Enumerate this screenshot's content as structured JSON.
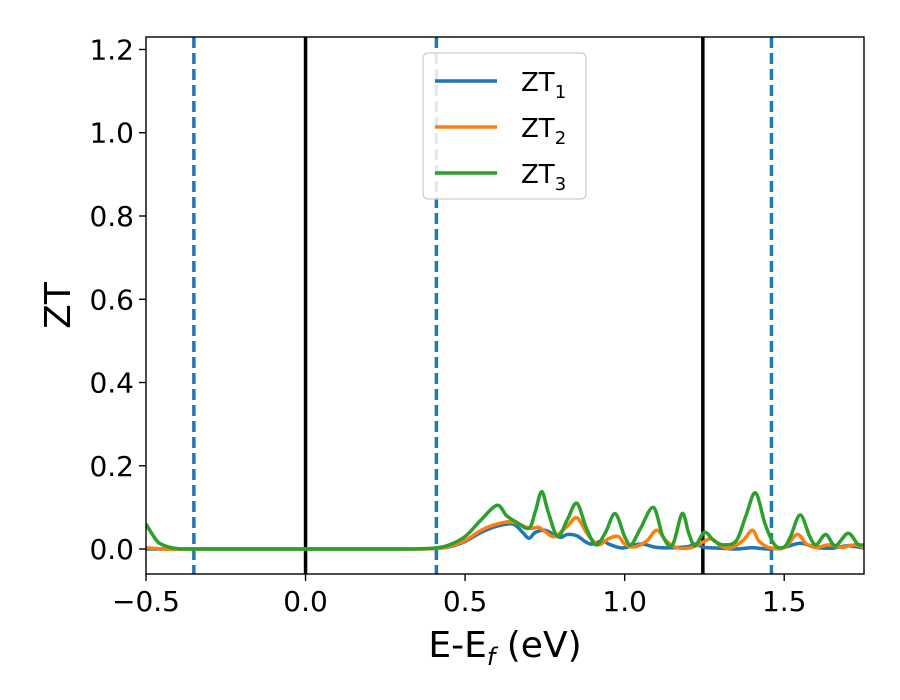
{
  "chart_data": {
    "type": "line",
    "xlabel": {
      "main": "E-E",
      "sub": "f",
      "rest": " (eV)"
    },
    "ylabel": "ZT",
    "xlim": [
      -0.5,
      1.75
    ],
    "ylim": [
      -0.06,
      1.23
    ],
    "xticks": [
      {
        "value": -0.5,
        "label": "−0.5"
      },
      {
        "value": 0.0,
        "label": "0.0"
      },
      {
        "value": 0.5,
        "label": "0.5"
      },
      {
        "value": 1.0,
        "label": "1.0"
      },
      {
        "value": 1.5,
        "label": "1.5"
      }
    ],
    "yticks": [
      {
        "value": 0.0,
        "label": "0.0"
      },
      {
        "value": 0.2,
        "label": "0.2"
      },
      {
        "value": 0.4,
        "label": "0.4"
      },
      {
        "value": 0.6,
        "label": "0.6"
      },
      {
        "value": 0.8,
        "label": "0.8"
      },
      {
        "value": 1.0,
        "label": "1.0"
      },
      {
        "value": 1.2,
        "label": "1.2"
      }
    ],
    "grid": false,
    "legend": {
      "position": "top-center"
    },
    "vlines_solid": [
      0.0,
      1.245
    ],
    "vlines_dashed": [
      -0.35,
      0.41,
      1.46
    ],
    "colors": {
      "solid_line": "#000000",
      "dashed_line": "#1f77b4"
    },
    "series": [
      {
        "name": "ZT",
        "subscript": "1",
        "color": "#1f77b4",
        "points": [
          [
            -0.5,
            0.0
          ],
          [
            -0.45,
            0.0
          ],
          [
            -0.4,
            0.0
          ],
          [
            -0.35,
            0.0
          ],
          [
            -0.3,
            0.0
          ],
          [
            0.0,
            0.0
          ],
          [
            0.3,
            0.0
          ],
          [
            0.4,
            0.001
          ],
          [
            0.45,
            0.005
          ],
          [
            0.5,
            0.018
          ],
          [
            0.55,
            0.04
          ],
          [
            0.6,
            0.055
          ],
          [
            0.65,
            0.06
          ],
          [
            0.68,
            0.04
          ],
          [
            0.7,
            0.026
          ],
          [
            0.72,
            0.04
          ],
          [
            0.75,
            0.045
          ],
          [
            0.78,
            0.034
          ],
          [
            0.8,
            0.028
          ],
          [
            0.82,
            0.035
          ],
          [
            0.85,
            0.032
          ],
          [
            0.88,
            0.016
          ],
          [
            0.9,
            0.012
          ],
          [
            0.93,
            0.02
          ],
          [
            0.95,
            0.012
          ],
          [
            0.98,
            0.004
          ],
          [
            1.0,
            0.003
          ],
          [
            1.05,
            0.012
          ],
          [
            1.1,
            0.004
          ],
          [
            1.15,
            0.003
          ],
          [
            1.2,
            0.006
          ],
          [
            1.22,
            0.012
          ],
          [
            1.25,
            0.004
          ],
          [
            1.3,
            0.002
          ],
          [
            1.35,
            0.0
          ],
          [
            1.4,
            0.003
          ],
          [
            1.45,
            0.0
          ],
          [
            1.5,
            0.004
          ],
          [
            1.55,
            0.014
          ],
          [
            1.6,
            0.004
          ],
          [
            1.65,
            0.002
          ],
          [
            1.7,
            0.008
          ],
          [
            1.75,
            0.002
          ]
        ]
      },
      {
        "name": "ZT",
        "subscript": "2",
        "color": "#ff7f0e",
        "points": [
          [
            -0.5,
            0.003
          ],
          [
            -0.45,
            0.0
          ],
          [
            -0.4,
            0.0
          ],
          [
            -0.35,
            0.0
          ],
          [
            0.0,
            0.0
          ],
          [
            0.3,
            0.0
          ],
          [
            0.4,
            0.001
          ],
          [
            0.45,
            0.006
          ],
          [
            0.5,
            0.02
          ],
          [
            0.55,
            0.045
          ],
          [
            0.6,
            0.06
          ],
          [
            0.65,
            0.065
          ],
          [
            0.7,
            0.05
          ],
          [
            0.73,
            0.052
          ],
          [
            0.75,
            0.042
          ],
          [
            0.78,
            0.03
          ],
          [
            0.82,
            0.055
          ],
          [
            0.85,
            0.075
          ],
          [
            0.88,
            0.04
          ],
          [
            0.9,
            0.02
          ],
          [
            0.92,
            0.01
          ],
          [
            0.95,
            0.025
          ],
          [
            0.98,
            0.03
          ],
          [
            1.0,
            0.012
          ],
          [
            1.03,
            0.005
          ],
          [
            1.07,
            0.02
          ],
          [
            1.1,
            0.045
          ],
          [
            1.13,
            0.02
          ],
          [
            1.16,
            0.004
          ],
          [
            1.2,
            0.002
          ],
          [
            1.23,
            0.01
          ],
          [
            1.27,
            0.025
          ],
          [
            1.3,
            0.008
          ],
          [
            1.33,
            0.002
          ],
          [
            1.37,
            0.02
          ],
          [
            1.4,
            0.045
          ],
          [
            1.42,
            0.02
          ],
          [
            1.45,
            0.004
          ],
          [
            1.5,
            0.003
          ],
          [
            1.54,
            0.035
          ],
          [
            1.57,
            0.012
          ],
          [
            1.6,
            0.004
          ],
          [
            1.64,
            0.01
          ],
          [
            1.68,
            0.004
          ],
          [
            1.72,
            0.01
          ],
          [
            1.75,
            0.003
          ]
        ]
      },
      {
        "name": "ZT",
        "subscript": "3",
        "color": "#2ca02c",
        "points": [
          [
            -0.5,
            0.06
          ],
          [
            -0.48,
            0.035
          ],
          [
            -0.46,
            0.015
          ],
          [
            -0.43,
            0.005
          ],
          [
            -0.4,
            0.001
          ],
          [
            -0.35,
            0.0
          ],
          [
            0.0,
            0.0
          ],
          [
            0.3,
            0.0
          ],
          [
            0.4,
            0.002
          ],
          [
            0.45,
            0.01
          ],
          [
            0.5,
            0.03
          ],
          [
            0.55,
            0.07
          ],
          [
            0.6,
            0.105
          ],
          [
            0.63,
            0.08
          ],
          [
            0.66,
            0.065
          ],
          [
            0.7,
            0.05
          ],
          [
            0.72,
            0.09
          ],
          [
            0.74,
            0.138
          ],
          [
            0.76,
            0.09
          ],
          [
            0.79,
            0.03
          ],
          [
            0.82,
            0.07
          ],
          [
            0.85,
            0.11
          ],
          [
            0.88,
            0.05
          ],
          [
            0.91,
            0.01
          ],
          [
            0.94,
            0.04
          ],
          [
            0.97,
            0.085
          ],
          [
            1.0,
            0.03
          ],
          [
            1.02,
            0.01
          ],
          [
            1.05,
            0.05
          ],
          [
            1.09,
            0.1
          ],
          [
            1.12,
            0.03
          ],
          [
            1.15,
            0.01
          ],
          [
            1.18,
            0.085
          ],
          [
            1.2,
            0.04
          ],
          [
            1.22,
            0.008
          ],
          [
            1.25,
            0.04
          ],
          [
            1.28,
            0.02
          ],
          [
            1.31,
            0.01
          ],
          [
            1.35,
            0.02
          ],
          [
            1.38,
            0.08
          ],
          [
            1.41,
            0.135
          ],
          [
            1.44,
            0.06
          ],
          [
            1.47,
            0.01
          ],
          [
            1.5,
            0.005
          ],
          [
            1.52,
            0.03
          ],
          [
            1.55,
            0.082
          ],
          [
            1.58,
            0.03
          ],
          [
            1.6,
            0.01
          ],
          [
            1.63,
            0.035
          ],
          [
            1.66,
            0.008
          ],
          [
            1.7,
            0.038
          ],
          [
            1.73,
            0.012
          ],
          [
            1.75,
            0.01
          ]
        ]
      }
    ]
  }
}
